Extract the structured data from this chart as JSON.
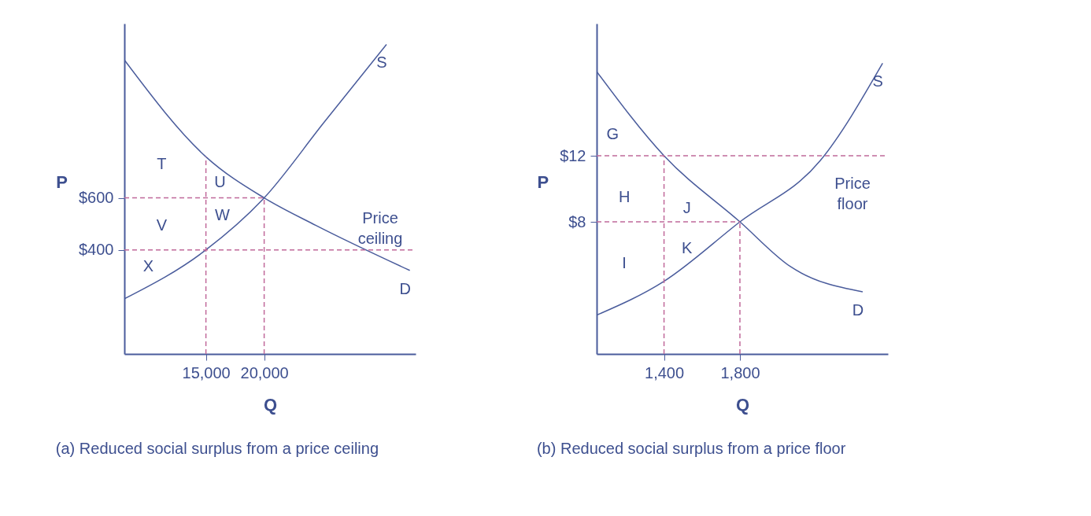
{
  "chart_data": [
    {
      "type": "line",
      "title": "(a) Reduced social surplus from a price ceiling",
      "xlabel": "Q",
      "ylabel": "P",
      "xlim": [
        8000,
        33000
      ],
      "ylim": [
        0,
        1270
      ],
      "xticks": [
        {
          "value": 15000,
          "label": "15,000"
        },
        {
          "value": 20000,
          "label": "20,000"
        }
      ],
      "yticks": [
        {
          "value": 400,
          "label": "$400"
        },
        {
          "value": 600,
          "label": "$600"
        }
      ],
      "grid": false,
      "legend": false,
      "series": [
        {
          "name": "D",
          "color": "#4a5c9c",
          "line_style": "solid",
          "x": [
            8000,
            15000,
            20000,
            24450,
            32500
          ],
          "values": [
            1130,
            758,
            600,
            494,
            321
          ]
        },
        {
          "name": "S",
          "color": "#4a5c9c",
          "line_style": "solid",
          "x": [
            8000,
            15000,
            20000,
            25100,
            30500
          ],
          "values": [
            212,
            400,
            600,
            888,
            1190
          ]
        },
        {
          "color": "#c0699a",
          "line_style": "dashed",
          "x": [
            8000,
            20000
          ],
          "values": [
            600,
            600
          ]
        },
        {
          "color": "#c0699a",
          "line_style": "dashed",
          "x": [
            15000,
            15000
          ],
          "values": [
            0,
            758
          ]
        },
        {
          "color": "#c0699a",
          "line_style": "dashed",
          "x": [
            20000,
            20000
          ],
          "values": [
            0,
            600
          ]
        }
      ],
      "ref_lines": [
        {
          "axis": "y",
          "value": 400,
          "label": "Price\nceiling",
          "color": "#c0699a",
          "line_style": "dashed"
        }
      ],
      "annotations": [
        "T",
        "U",
        "V",
        "W",
        "X"
      ]
    },
    {
      "type": "line",
      "title": "(b) Reduced social surplus from a price floor",
      "xlabel": "Q",
      "ylabel": "P",
      "xlim": [
        1045,
        2580
      ],
      "ylim": [
        0,
        20
      ],
      "xticks": [
        {
          "value": 1400,
          "label": "1,400"
        },
        {
          "value": 1800,
          "label": "1,800"
        }
      ],
      "yticks": [
        {
          "value": 8,
          "label": "$8"
        },
        {
          "value": 12,
          "label": "$12"
        }
      ],
      "grid": false,
      "legend": false,
      "series": [
        {
          "name": "D",
          "color": "#4a5c9c",
          "line_style": "solid",
          "x": [
            1045,
            1400,
            1800,
            2065,
            2447
          ],
          "values": [
            17.1,
            12,
            8,
            5.3,
            3.76
          ]
        },
        {
          "name": "S",
          "color": "#4a5c9c",
          "line_style": "solid",
          "x": [
            1045,
            1400,
            1800,
            2223,
            2552
          ],
          "values": [
            2.35,
            4.4,
            8,
            11.7,
            17.6
          ]
        },
        {
          "color": "#c0699a",
          "line_style": "dashed",
          "x": [
            1045,
            1800
          ],
          "values": [
            8,
            8
          ]
        },
        {
          "color": "#c0699a",
          "line_style": "dashed",
          "x": [
            1400,
            1400
          ],
          "values": [
            0,
            12
          ]
        },
        {
          "color": "#c0699a",
          "line_style": "dashed",
          "x": [
            1800,
            1800
          ],
          "values": [
            0,
            8
          ]
        }
      ],
      "ref_lines": [
        {
          "axis": "y",
          "value": 12,
          "label": "Price\nfloor",
          "color": "#c0699a",
          "line_style": "dashed"
        }
      ],
      "annotations": [
        "G",
        "H",
        "J",
        "I",
        "K"
      ]
    }
  ]
}
